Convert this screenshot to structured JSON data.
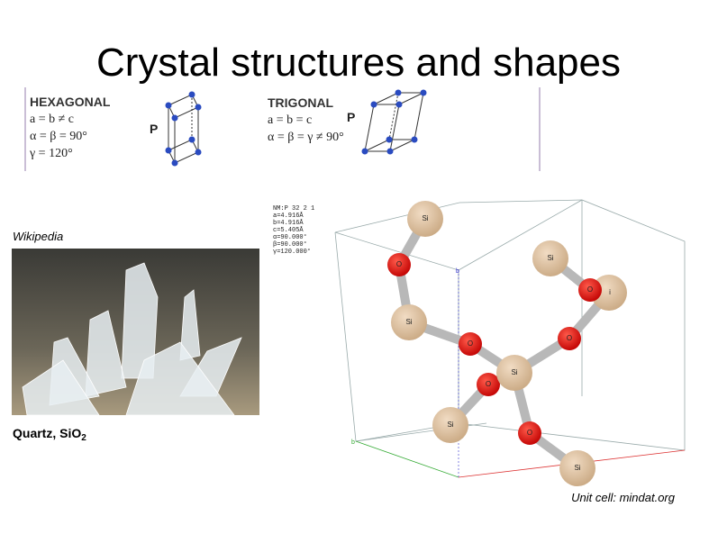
{
  "slide": {
    "title": "Crystal structures and shapes",
    "hexagonal": {
      "name": "HEXAGONAL",
      "lines": [
        "a = b ≠ c",
        "α = β = 90°",
        "γ = 120°"
      ],
      "lattice": "P"
    },
    "trigonal": {
      "name": "TRIGONAL",
      "lines": [
        "a = b = c",
        "α = β = γ ≠ 90°"
      ],
      "lattice": "P"
    },
    "photo_credit": "Wikipedia",
    "photo_caption": {
      "text": "Quartz, SiO",
      "subscript": "2"
    },
    "structure": {
      "info": [
        "NM:P 32 2 1",
        "a=4.916Å",
        "b=4.916Å",
        "c=5.405Å",
        "α=90.000°",
        "β=90.000°",
        "γ=120.000°"
      ],
      "atom_labels": [
        "Si",
        "O",
        "Si",
        "i",
        "O",
        "Si",
        "O",
        "O",
        "Si",
        "O",
        "Si",
        "O",
        "Si"
      ],
      "axis_labels": [
        "b",
        "b"
      ]
    },
    "structure_credit": "Unit cell: mindat.org"
  }
}
